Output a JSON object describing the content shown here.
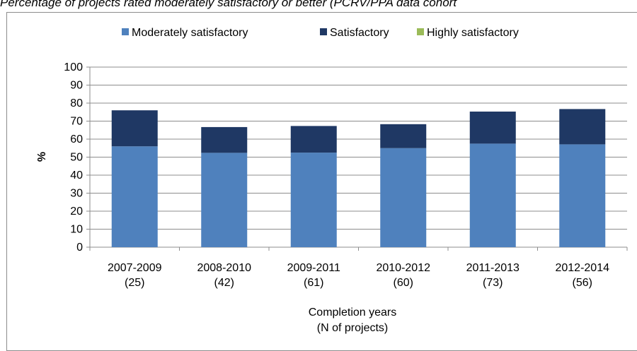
{
  "title": "Percentage of projects rated moderately satisfactory or better (PCRV/PPA data cohort",
  "chart_data": {
    "type": "bar",
    "stacked": true,
    "categories": [
      [
        "2007-2009",
        "(25)"
      ],
      [
        "2008-2010",
        "(42)"
      ],
      [
        "2009-2011",
        "(61)"
      ],
      [
        "2010-2012",
        "(60)"
      ],
      [
        "2011-2013",
        "(73)"
      ],
      [
        "2012-2014",
        "(56)"
      ]
    ],
    "series": [
      {
        "name": "Moderately satisfactory",
        "color": "#4f81bd",
        "values": [
          56,
          52.4,
          52.5,
          55,
          57.5,
          57.1
        ]
      },
      {
        "name": "Satisfactory",
        "color": "#1f3864",
        "values": [
          20,
          14.3,
          14.8,
          13.3,
          17.8,
          19.6
        ]
      },
      {
        "name": "Highly satisfactory",
        "color": "#9bbb59",
        "values": [
          0,
          0,
          0,
          0,
          0,
          0
        ]
      }
    ],
    "ylabel": "%",
    "xlabel": [
      "Completion years",
      "(N of projects)"
    ],
    "ylim": [
      0,
      100
    ],
    "yticks": [
      0,
      10,
      20,
      30,
      40,
      50,
      60,
      70,
      80,
      90,
      100
    ],
    "grid": true,
    "legend": "top"
  }
}
